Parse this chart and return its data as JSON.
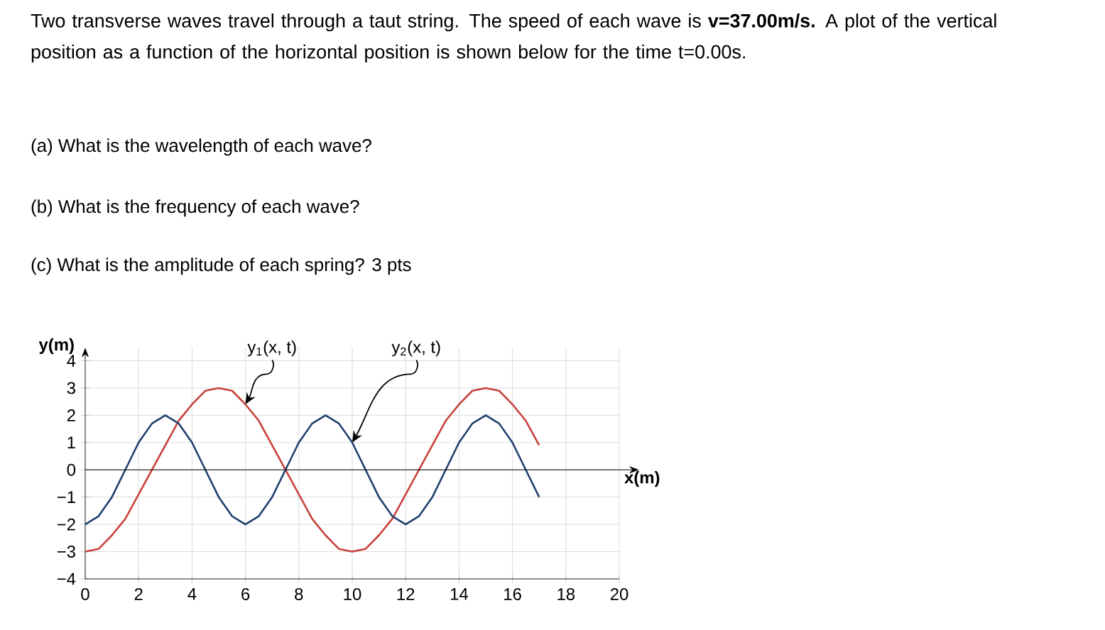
{
  "chart_data": {
    "type": "line",
    "title": "Two transverse waves travel through a taut string. The speed of each wave is **v=37.00m/s.** A plot of the vertical position as a function of the horizontal position is shown below for the time t=0.00s.",
    "xlabel": "x(m)",
    "ylabel": "y(m)",
    "x": [
      0,
      0.5,
      1,
      1.5,
      2,
      2.5,
      3,
      3.5,
      4,
      4.5,
      5,
      5.5,
      6,
      6.5,
      7,
      7.5,
      8,
      8.5,
      9,
      9.5,
      10,
      10.5,
      11,
      11.5,
      12,
      12.5,
      13,
      13.5,
      14,
      14.5,
      15,
      15.5,
      16,
      16.5,
      17
    ],
    "series": [
      {
        "color": "#c8413b",
        "values": [
          -3,
          -2.9,
          -2.4,
          -1.8,
          -0.9,
          0,
          0.9,
          1.8,
          2.4,
          2.9,
          3,
          2.9,
          2.4,
          1.8,
          0.9,
          0,
          -0.9,
          -1.8,
          -2.4,
          -2.9,
          -3,
          -2.9,
          -2.4,
          -1.8,
          -0.9,
          0,
          0.9,
          1.8,
          2.4,
          2.9,
          3,
          2.9,
          2.4,
          1.8,
          0.9
        ]
      },
      {
        "color": "#1f3f6e",
        "values": [
          -2,
          -1.7,
          -1,
          0,
          1,
          1.7,
          2,
          1.7,
          1,
          0,
          -1,
          -1.7,
          -2,
          -1.7,
          -1,
          0,
          1,
          1.7,
          2,
          1.7,
          1,
          0,
          -1,
          -1.7,
          -2,
          -1.7,
          -1,
          0,
          1,
          1.7,
          2,
          1.7,
          1,
          0,
          -1
        ]
      }
    ],
    "xlim": [
      0,
      20
    ],
    "ylim": [
      -4,
      4
    ],
    "xticks": [
      0,
      2,
      4,
      6,
      8,
      10,
      12,
      14,
      16,
      18,
      20
    ],
    "yticks": [
      {
        "value": -4,
        "label": "−4"
      },
      {
        "value": -3,
        "label": "−3"
      },
      {
        "value": -2,
        "label": "−2"
      },
      {
        "value": -1,
        "label": "−1"
      },
      0,
      1,
      2,
      3,
      4
    ],
    "grid": true,
    "marker": "none",
    "line_style": "solid",
    "annotations": [
      "(a) What is the wavelength of each wave?",
      "(b) What is the frequency of each wave?",
      "(c) What is the amplitude of each spring? 3 pts",
      {
        "text": "y$_{1}$(x, t)",
        "x": 6,
        "y": 2.4
      },
      {
        "text": "y$_{2}$(x, t)",
        "x": 10,
        "y": 1
      }
    ]
  }
}
